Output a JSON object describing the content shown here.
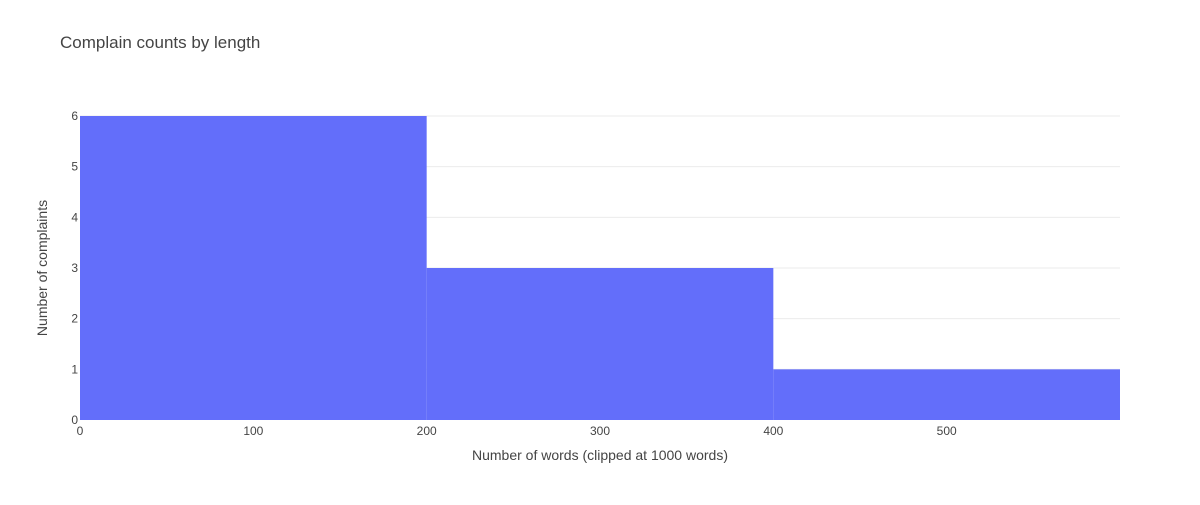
{
  "chart_data": {
    "type": "histogram",
    "title": "Complain counts by length",
    "xlabel": "Number of words (clipped at 1000 words)",
    "ylabel": "Number of complaints",
    "bins": [
      {
        "start": 0,
        "end": 200,
        "count": 6
      },
      {
        "start": 200,
        "end": 400,
        "count": 3
      },
      {
        "start": 400,
        "end": 600,
        "count": 1
      }
    ],
    "xlim": [
      0,
      600
    ],
    "ylim": [
      0,
      6
    ],
    "x_ticks": [
      0,
      100,
      200,
      300,
      400,
      500
    ],
    "y_ticks": [
      0,
      1,
      2,
      3,
      4,
      5,
      6
    ],
    "bar_color": "#636efa",
    "grid": true
  }
}
